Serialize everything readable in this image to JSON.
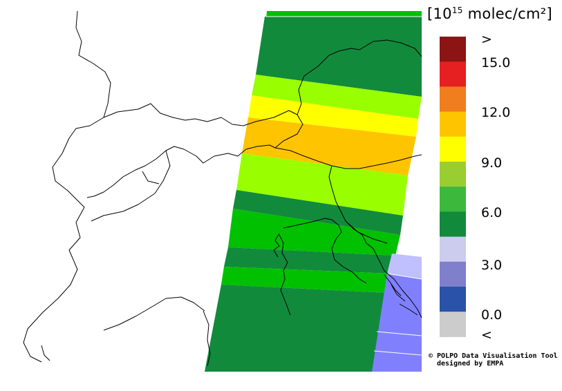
{
  "legend": {
    "title_open": "[10",
    "title_exp": "15",
    "title_unit": " molec/cm²]",
    "items": [
      {
        "color": "#8c1414"
      },
      {
        "color": "#e62020"
      },
      {
        "color": "#f07d1e"
      },
      {
        "color": "#ffc400"
      },
      {
        "color": "#ffff00"
      },
      {
        "color": "#9acd32"
      },
      {
        "color": "#3cb83c"
      },
      {
        "color": "#128a3c"
      },
      {
        "color": "#ccccee"
      },
      {
        "color": "#7f7fcc"
      },
      {
        "color": "#2a52a8"
      },
      {
        "color": "#cccccc"
      }
    ],
    "labels": [
      ">",
      "15.0",
      "12.0",
      "9.0",
      "6.0",
      "3.0",
      "0.0",
      "<"
    ]
  },
  "credit": {
    "line1": "© POLPO Data Visualisation Tool",
    "line2": "designed by EMPA"
  },
  "map": {
    "colors": {
      "dark_green": "#128a3c",
      "green": "#00c000",
      "lime": "#99ff00",
      "yellow": "#ffff00",
      "orange": "#ffc400",
      "periwinkle": "#8080ff",
      "light_periwinkle": "#c0c0ff"
    }
  }
}
